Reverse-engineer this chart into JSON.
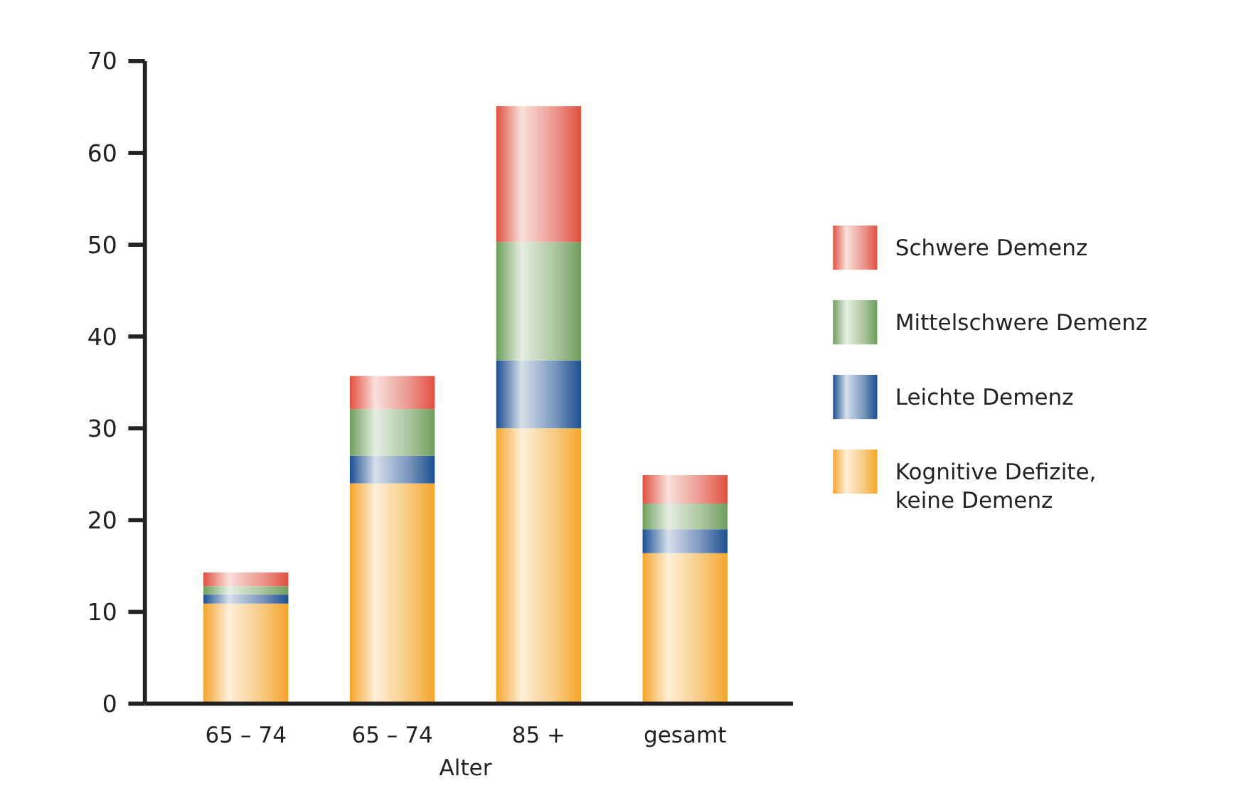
{
  "chart_data": {
    "type": "bar",
    "stacked": true,
    "xlabel": "Alter",
    "categories": [
      "65 – 74",
      "65 – 74",
      "85 +",
      "gesamt"
    ],
    "series": [
      {
        "name": "Kognitive Defizite,\nkeine Demenz",
        "color": "#f4a52a",
        "values": [
          10.9,
          24.0,
          30.0,
          16.4
        ]
      },
      {
        "name": "Leichte Demenz",
        "color": "#1d4f91",
        "values": [
          1.0,
          3.0,
          7.4,
          2.6
        ]
      },
      {
        "name": "Mittelschwere Demenz",
        "color": "#6f9e5c",
        "values": [
          0.9,
          5.1,
          12.9,
          2.8
        ]
      },
      {
        "name": "Schwere Demenz",
        "color": "#e0503f",
        "values": [
          1.5,
          3.6,
          14.8,
          3.1
        ]
      }
    ],
    "ylim": [
      0,
      70
    ],
    "yticks": [
      0,
      10,
      20,
      30,
      40,
      50,
      60,
      70
    ],
    "legend": "right",
    "grid": false
  }
}
